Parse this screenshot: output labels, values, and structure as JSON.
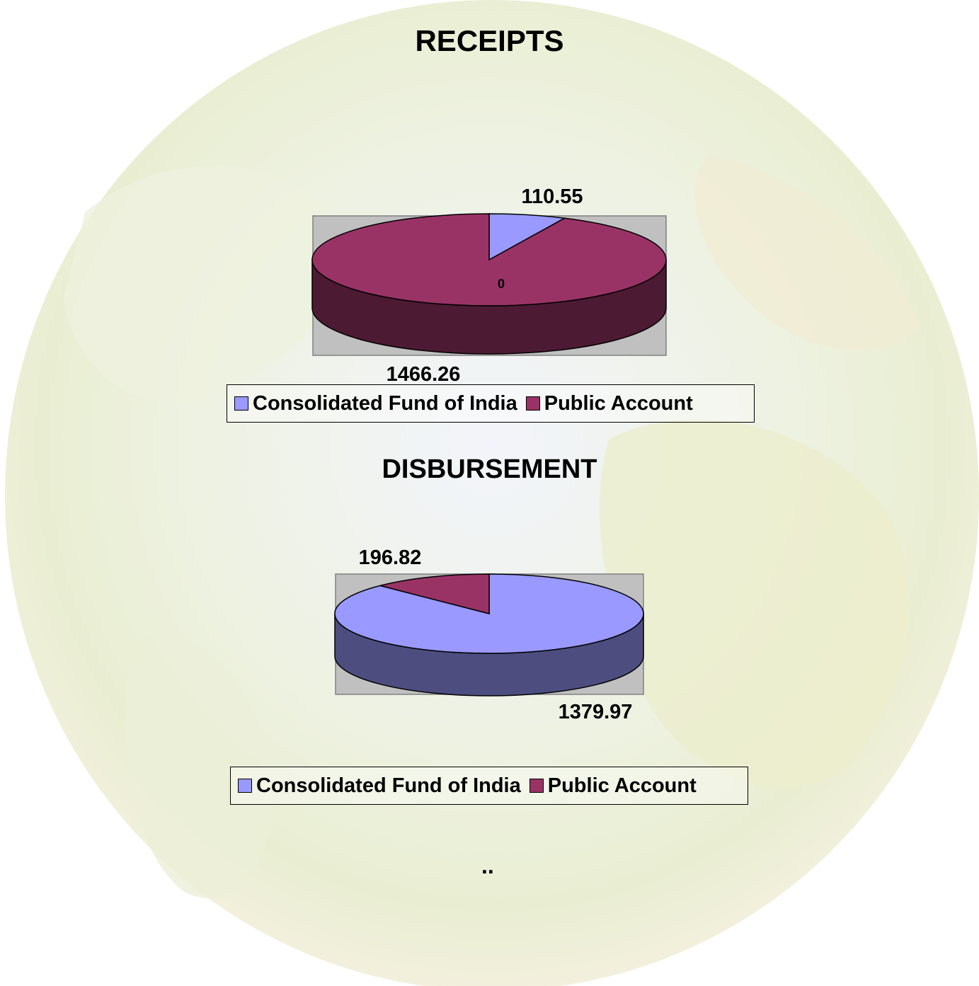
{
  "chart_data": [
    {
      "type": "pie",
      "title": "RECEIPTS",
      "categories": [
        "Consolidated Fund of India",
        "Public Account"
      ],
      "values": [
        110.55,
        1466.26
      ],
      "extra_label": "0",
      "colors": [
        "#9999ff",
        "#993366"
      ],
      "legend_position": "bottom"
    },
    {
      "type": "pie",
      "title": "DISBURSEMENT",
      "categories": [
        "Consolidated Fund of India",
        "Public Account"
      ],
      "values": [
        1379.97,
        196.82
      ],
      "colors": [
        "#9999ff",
        "#993366"
      ],
      "legend_position": "bottom"
    }
  ],
  "footer_marks": ".."
}
